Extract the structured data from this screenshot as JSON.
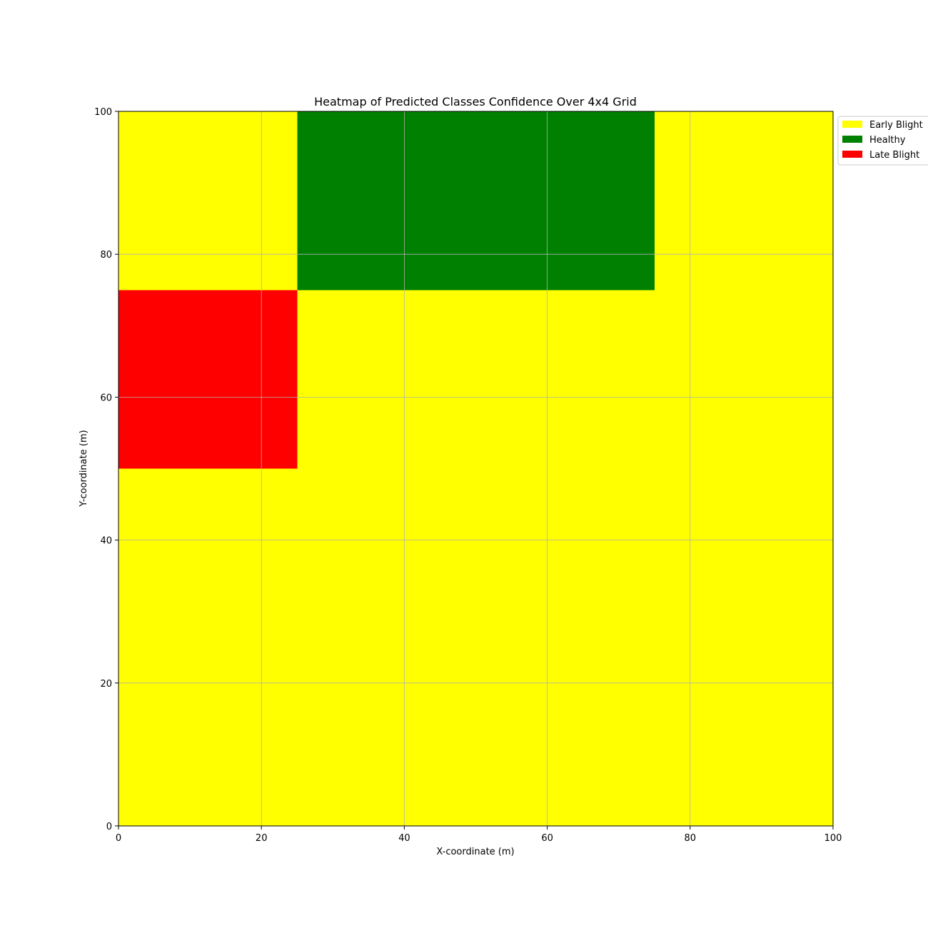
{
  "chart_data": {
    "type": "heatmap",
    "title": "Heatmap of Predicted Classes Confidence Over 4x4 Grid",
    "xlabel": "X-coordinate (m)",
    "ylabel": "Y-coordinate (m)",
    "xlim": [
      0,
      100
    ],
    "ylim": [
      0,
      100
    ],
    "xticks": [
      "0",
      "20",
      "40",
      "60",
      "80",
      "100"
    ],
    "yticks": [
      "0",
      "20",
      "40",
      "60",
      "80",
      "100"
    ],
    "x_tick_values": [
      0,
      20,
      40,
      60,
      80,
      100
    ],
    "y_tick_values": [
      0,
      20,
      40,
      60,
      80,
      100
    ],
    "grid": true,
    "legend_position": "upper-right-outside",
    "classes": [
      {
        "name": "Early Blight",
        "color": "#ffff00"
      },
      {
        "name": "Healthy",
        "color": "#008000"
      },
      {
        "name": "Late Blight",
        "color": "#ff0000"
      }
    ],
    "cell_size": 25,
    "grid_rows_top_to_bottom": [
      [
        "Early Blight",
        "Healthy",
        "Healthy",
        "Early Blight"
      ],
      [
        "Late Blight",
        "Early Blight",
        "Early Blight",
        "Early Blight"
      ],
      [
        "Early Blight",
        "Early Blight",
        "Early Blight",
        "Early Blight"
      ],
      [
        "Early Blight",
        "Early Blight",
        "Early Blight",
        "Early Blight"
      ]
    ]
  }
}
